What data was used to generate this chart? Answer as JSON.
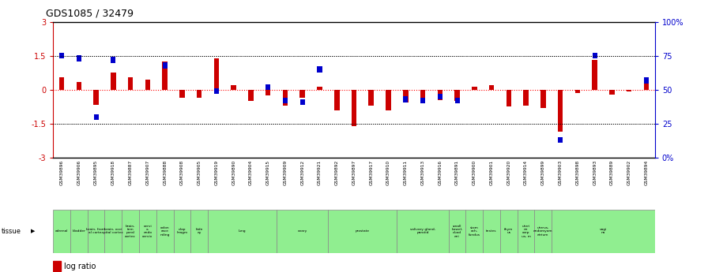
{
  "title": "GDS1085 / 32479",
  "samples": [
    "GSM39896",
    "GSM39906",
    "GSM39895",
    "GSM39918",
    "GSM39887",
    "GSM39907",
    "GSM39888",
    "GSM39908",
    "GSM39905",
    "GSM39919",
    "GSM39890",
    "GSM39904",
    "GSM39915",
    "GSM39909",
    "GSM39912",
    "GSM39921",
    "GSM39892",
    "GSM39897",
    "GSM39917",
    "GSM39910",
    "GSM39911",
    "GSM39913",
    "GSM39916",
    "GSM39891",
    "GSM39900",
    "GSM39901",
    "GSM39920",
    "GSM39914",
    "GSM39899",
    "GSM39903",
    "GSM39898",
    "GSM39893",
    "GSM39889",
    "GSM39902",
    "GSM39894"
  ],
  "log_ratio": [
    0.55,
    0.35,
    -0.65,
    0.75,
    0.55,
    0.45,
    1.25,
    -0.35,
    -0.35,
    1.38,
    0.2,
    -0.5,
    -0.25,
    -0.7,
    -0.35,
    0.15,
    -0.9,
    -1.6,
    -0.7,
    -0.9,
    -0.55,
    -0.45,
    -0.45,
    -0.5,
    0.15,
    0.2,
    -0.75,
    -0.7,
    -0.8,
    -1.85,
    -0.15,
    1.3,
    -0.2,
    -0.08,
    0.55
  ],
  "pct_rank": [
    75,
    73,
    30,
    72,
    null,
    null,
    68,
    null,
    null,
    49,
    null,
    null,
    52,
    42,
    41,
    65,
    null,
    null,
    null,
    null,
    43,
    42,
    45,
    42,
    null,
    null,
    null,
    null,
    null,
    13,
    null,
    75,
    null,
    null,
    57
  ],
  "tissue_groups": [
    {
      "label": "adrenal",
      "start": 0,
      "end": 0
    },
    {
      "label": "bladder",
      "start": 1,
      "end": 1
    },
    {
      "label": "brain, front\nal cortex",
      "start": 2,
      "end": 2
    },
    {
      "label": "brain, occi\npital cortex",
      "start": 3,
      "end": 3
    },
    {
      "label": "brain,\ntem\nporal\ncortex",
      "start": 4,
      "end": 4
    },
    {
      "label": "cervi\nx,\nendo\ncervix",
      "start": 5,
      "end": 5
    },
    {
      "label": "colon\nasce\nnding",
      "start": 6,
      "end": 6
    },
    {
      "label": "diap\nhragm",
      "start": 7,
      "end": 7
    },
    {
      "label": "kidn\ney",
      "start": 8,
      "end": 8
    },
    {
      "label": "lung",
      "start": 9,
      "end": 12
    },
    {
      "label": "ovary",
      "start": 13,
      "end": 15
    },
    {
      "label": "prostate",
      "start": 16,
      "end": 19
    },
    {
      "label": "salivary gland,\nparotid",
      "start": 20,
      "end": 22
    },
    {
      "label": "small\nbowel,\nduod\neni",
      "start": 23,
      "end": 23
    },
    {
      "label": "stom\nach,\nfundus",
      "start": 24,
      "end": 24
    },
    {
      "label": "testes",
      "start": 25,
      "end": 25
    },
    {
      "label": "thym\nus",
      "start": 26,
      "end": 26
    },
    {
      "label": "uteri\nne\ncorp\nus, m",
      "start": 27,
      "end": 27
    },
    {
      "label": "uterus,\nendomyom\netrium",
      "start": 28,
      "end": 28
    },
    {
      "label": "vagi\nna",
      "start": 29,
      "end": 34
    }
  ],
  "ylim_left": [
    -3,
    3
  ],
  "yticks_left": [
    -3,
    -1.5,
    0,
    1.5,
    3
  ],
  "ytick_labels_left": [
    "-3",
    "-1.5",
    "0",
    "1.5",
    "3"
  ],
  "yticks_right": [
    0,
    25,
    50,
    75,
    100
  ],
  "ytick_labels_right": [
    "0%",
    "25",
    "50",
    "75",
    "100%"
  ],
  "red_color": "#CC0000",
  "blue_color": "#0000CC",
  "green_color": "#90EE90",
  "gray_color": "#C8C8C8"
}
